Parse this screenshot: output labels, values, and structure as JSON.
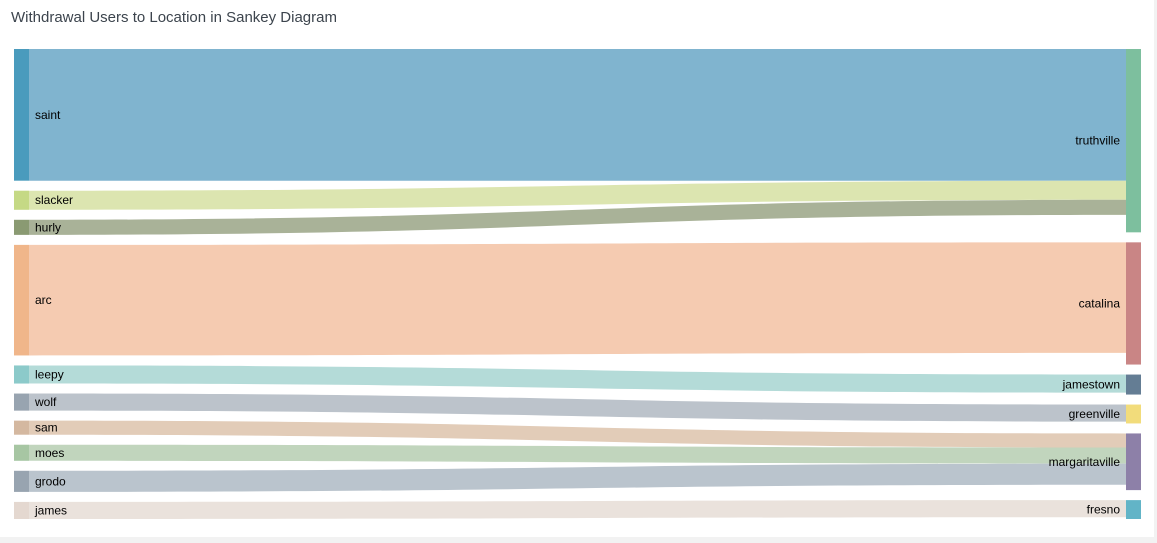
{
  "title": "Withdrawal Users to Location in Sankey Diagram",
  "chart_data": {
    "type": "sankey",
    "sources": [
      {
        "name": "saint",
        "color": "#4a9bbd"
      },
      {
        "name": "slacker",
        "color": "#c5d985"
      },
      {
        "name": "hurly",
        "color": "#8a9a72"
      },
      {
        "name": "arc",
        "color": "#f0b68a"
      },
      {
        "name": "leepy",
        "color": "#8ccaca"
      },
      {
        "name": "wolf",
        "color": "#98a4b0"
      },
      {
        "name": "sam",
        "color": "#d4b8a0"
      },
      {
        "name": "moes",
        "color": "#a7c6a3"
      },
      {
        "name": "grodo",
        "color": "#98a4b0"
      },
      {
        "name": "james",
        "color": "#e4d8d0"
      }
    ],
    "targets": [
      {
        "name": "truthville",
        "color": "#7dbf9e"
      },
      {
        "name": "catalina",
        "color": "#c98585"
      },
      {
        "name": "jamestown",
        "color": "#647d94"
      },
      {
        "name": "greenville",
        "color": "#f2dc7b"
      },
      {
        "name": "margaritaville",
        "color": "#8d80a8"
      },
      {
        "name": "fresno",
        "color": "#62b4c7"
      }
    ],
    "links": [
      {
        "source": "saint",
        "target": "truthville",
        "value": 131,
        "color": "#80b4cf"
      },
      {
        "source": "slacker",
        "target": "truthville",
        "value": 19,
        "color": "#dce5b0"
      },
      {
        "source": "hurly",
        "target": "truthville",
        "value": 15,
        "color": "#a9b298"
      },
      {
        "source": "arc",
        "target": "catalina",
        "value": 110,
        "color": "#f5cbb1"
      },
      {
        "source": "leepy",
        "target": "jamestown",
        "value": 18,
        "color": "#b4dbd8"
      },
      {
        "source": "wolf",
        "target": "greenville",
        "value": 17,
        "color": "#bcc3cb"
      },
      {
        "source": "sam",
        "target": "margaritaville",
        "value": 14,
        "color": "#e2ccb8"
      },
      {
        "source": "moes",
        "target": "margaritaville",
        "value": 16,
        "color": "#c1d5bd"
      },
      {
        "source": "grodo",
        "target": "margaritaville",
        "value": 21,
        "color": "#bac4cd"
      },
      {
        "source": "james",
        "target": "fresno",
        "value": 17,
        "color": "#eae2dc"
      }
    ]
  }
}
